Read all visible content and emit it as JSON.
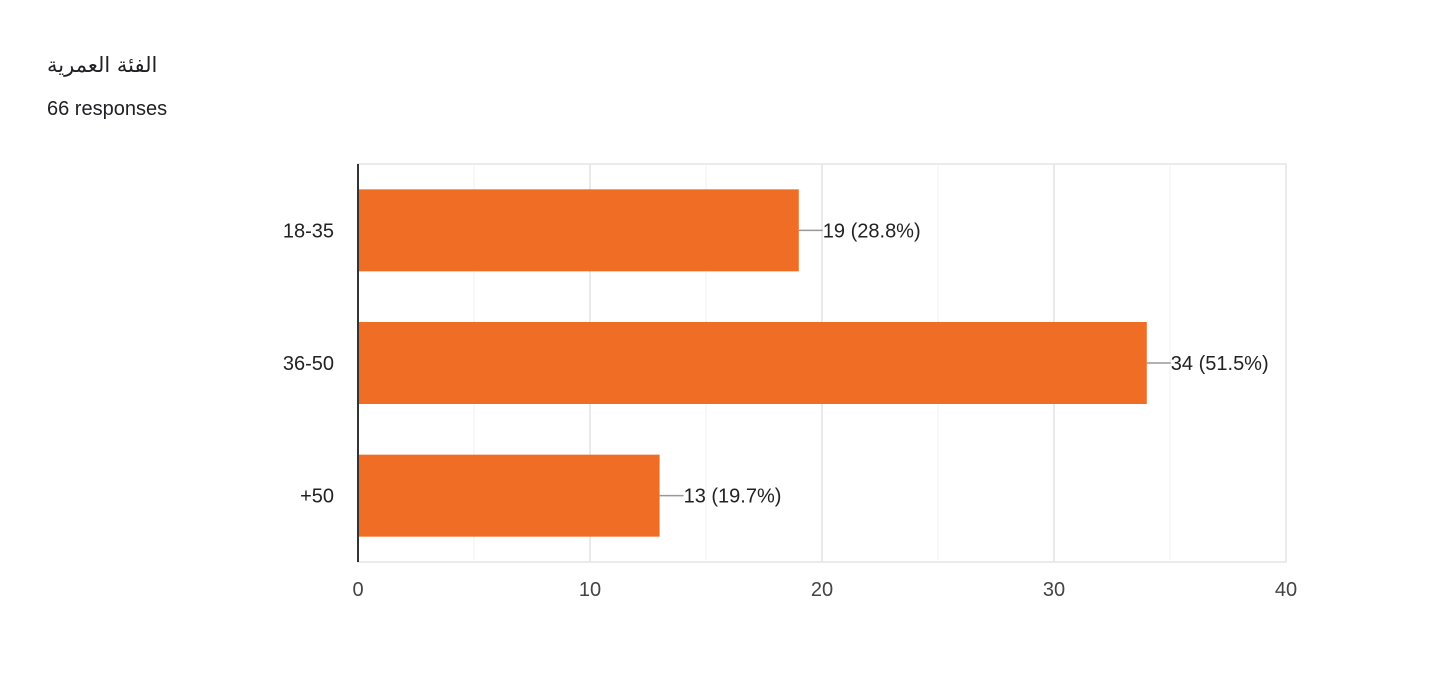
{
  "card": {
    "title": "الفئة العمرية",
    "responses": "66 responses"
  },
  "colors": {
    "bar": "#F06D26",
    "grid": "#EBEBEB",
    "axis": "#333333",
    "leader": "#999999"
  },
  "chart_data": {
    "type": "bar",
    "orientation": "horizontal",
    "categories": [
      "18-35",
      "36-50",
      "+50"
    ],
    "values": [
      19,
      34,
      13
    ],
    "data_labels": [
      "19 (28.8%)",
      "34 (51.5%)",
      "13 (19.7%)"
    ],
    "xlim": [
      0,
      40
    ],
    "xticks": [
      0,
      10,
      20,
      30,
      40
    ],
    "grid": true,
    "legend": "none"
  }
}
